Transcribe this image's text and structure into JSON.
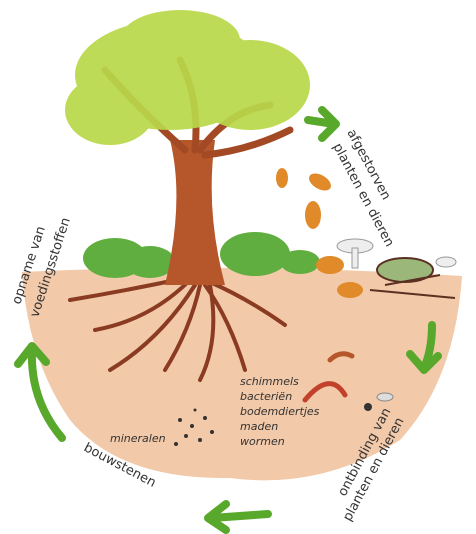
{
  "cycle_labels": {
    "dead_matter": [
      "afgestorven",
      "planten en dieren"
    ],
    "decomposition": [
      "ontbinding van",
      "planten en dieren"
    ],
    "building_blocks": "bouwstenen",
    "uptake": [
      "opname van",
      "voedingsstoffen"
    ]
  },
  "soil_labels": {
    "minerals": "mineralen",
    "decomposers": [
      "schimmels",
      "bacteriën",
      "bodemdiertjes",
      "maden",
      "wormen"
    ]
  }
}
